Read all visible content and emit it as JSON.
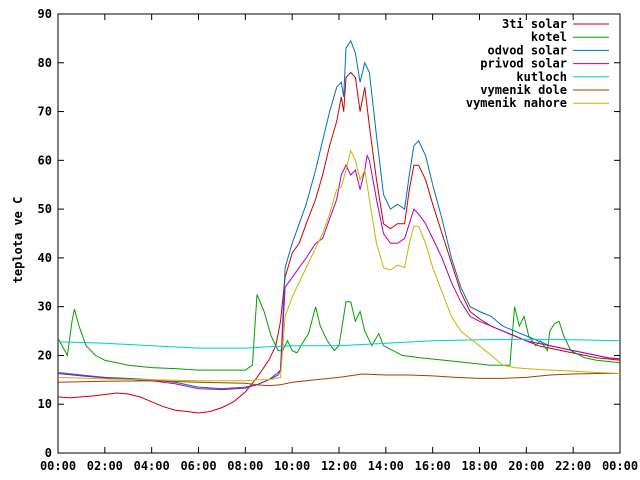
{
  "chart_data": {
    "type": "line",
    "title": "",
    "xlabel": "",
    "ylabel": "teplota ve C",
    "xlim": [
      0,
      24
    ],
    "ylim": [
      0,
      90
    ],
    "xticks": [
      0,
      2,
      4,
      6,
      8,
      10,
      12,
      14,
      16,
      18,
      20,
      22,
      24
    ],
    "xtick_labels": [
      "00:00",
      "02:00",
      "04:00",
      "06:00",
      "08:00",
      "10:00",
      "12:00",
      "14:00",
      "16:00",
      "18:00",
      "20:00",
      "22:00",
      "00:00"
    ],
    "yticks": [
      0,
      10,
      20,
      30,
      40,
      50,
      60,
      70,
      80,
      90
    ],
    "ytick_labels": [
      "0",
      "10",
      "20",
      "30",
      "40",
      "50",
      "60",
      "70",
      "80",
      "90"
    ],
    "grid": false,
    "legend_position": "top-right",
    "series": [
      {
        "name": "3ti solar",
        "color": "#cc0000",
        "points": [
          [
            0,
            11.5
          ],
          [
            0.5,
            11.3
          ],
          [
            1,
            11.5
          ],
          [
            1.5,
            11.7
          ],
          [
            2,
            12
          ],
          [
            2.5,
            12.3
          ],
          [
            3,
            12.1
          ],
          [
            3.5,
            11.5
          ],
          [
            4,
            10.5
          ],
          [
            4.5,
            9.5
          ],
          [
            5,
            8.8
          ],
          [
            5.5,
            8.5
          ],
          [
            6,
            8.2
          ],
          [
            6.5,
            8.5
          ],
          [
            7,
            9.3
          ],
          [
            7.5,
            10.5
          ],
          [
            8,
            12.5
          ],
          [
            8.5,
            15.5
          ],
          [
            9,
            19
          ],
          [
            9.3,
            22
          ],
          [
            9.5,
            27
          ],
          [
            9.7,
            36
          ],
          [
            10,
            41
          ],
          [
            10.3,
            43
          ],
          [
            10.6,
            47
          ],
          [
            11,
            52
          ],
          [
            11.3,
            57
          ],
          [
            11.6,
            63
          ],
          [
            11.9,
            68
          ],
          [
            12.1,
            73
          ],
          [
            12.2,
            70
          ],
          [
            12.3,
            77
          ],
          [
            12.5,
            78
          ],
          [
            12.7,
            77
          ],
          [
            12.9,
            70
          ],
          [
            13.1,
            75
          ],
          [
            13.3,
            67
          ],
          [
            13.6,
            56
          ],
          [
            13.9,
            47
          ],
          [
            14.2,
            46
          ],
          [
            14.5,
            47
          ],
          [
            14.8,
            47
          ],
          [
            15,
            54
          ],
          [
            15.2,
            59
          ],
          [
            15.4,
            59
          ],
          [
            15.7,
            56
          ],
          [
            16,
            51
          ],
          [
            16.4,
            45
          ],
          [
            16.8,
            39
          ],
          [
            17.2,
            33
          ],
          [
            17.6,
            29
          ],
          [
            18,
            27.5
          ],
          [
            18.5,
            26
          ],
          [
            19,
            25
          ],
          [
            19.5,
            24
          ],
          [
            20,
            23
          ],
          [
            20.5,
            22
          ],
          [
            21,
            21.5
          ],
          [
            21.5,
            21
          ],
          [
            22,
            20.5
          ],
          [
            22.5,
            20
          ],
          [
            23,
            19.5
          ],
          [
            23.5,
            19.3
          ],
          [
            24,
            19
          ]
        ]
      },
      {
        "name": "kotel",
        "color": "#00a000",
        "points": [
          [
            0,
            23.5
          ],
          [
            0.4,
            20
          ],
          [
            0.6,
            27
          ],
          [
            0.7,
            29.5
          ],
          [
            0.9,
            26
          ],
          [
            1.2,
            22
          ],
          [
            1.6,
            20
          ],
          [
            2,
            19
          ],
          [
            3,
            18
          ],
          [
            4,
            17.5
          ],
          [
            5,
            17.3
          ],
          [
            6,
            17
          ],
          [
            7,
            17
          ],
          [
            8,
            17
          ],
          [
            8.3,
            18
          ],
          [
            8.5,
            32.5
          ],
          [
            8.8,
            29
          ],
          [
            9.1,
            24
          ],
          [
            9.4,
            21
          ],
          [
            9.6,
            21
          ],
          [
            9.8,
            23
          ],
          [
            10,
            21
          ],
          [
            10.2,
            20.5
          ],
          [
            10.5,
            23
          ],
          [
            10.7,
            24.5
          ],
          [
            11,
            30
          ],
          [
            11.2,
            26
          ],
          [
            11.5,
            23
          ],
          [
            11.8,
            21
          ],
          [
            12,
            22
          ],
          [
            12.3,
            31
          ],
          [
            12.5,
            31
          ],
          [
            12.7,
            27
          ],
          [
            12.9,
            29
          ],
          [
            13.1,
            25
          ],
          [
            13.4,
            22
          ],
          [
            13.7,
            24.5
          ],
          [
            13.9,
            22
          ],
          [
            14.3,
            21
          ],
          [
            14.7,
            20
          ],
          [
            15.5,
            19.5
          ],
          [
            16.5,
            19
          ],
          [
            17.5,
            18.5
          ],
          [
            18.5,
            18
          ],
          [
            19.3,
            18
          ],
          [
            19.5,
            30
          ],
          [
            19.7,
            26
          ],
          [
            19.9,
            28
          ],
          [
            20.1,
            24
          ],
          [
            20.4,
            22
          ],
          [
            20.6,
            23
          ],
          [
            20.9,
            21
          ],
          [
            21,
            25
          ],
          [
            21.2,
            26.5
          ],
          [
            21.4,
            27
          ],
          [
            21.6,
            24
          ],
          [
            21.9,
            21
          ],
          [
            22.5,
            19.5
          ],
          [
            23,
            19
          ],
          [
            24,
            18.5
          ]
        ]
      },
      {
        "name": "odvod solar",
        "color": "#0070c0",
        "points": [
          [
            0,
            16.5
          ],
          [
            1,
            16
          ],
          [
            2,
            15.5
          ],
          [
            3,
            15.3
          ],
          [
            4,
            15
          ],
          [
            5,
            14.5
          ],
          [
            6,
            13.5
          ],
          [
            7,
            13.2
          ],
          [
            8,
            13.5
          ],
          [
            8.5,
            14
          ],
          [
            9,
            15
          ],
          [
            9.4,
            16.5
          ],
          [
            9.5,
            17
          ],
          [
            9.7,
            38
          ],
          [
            10,
            43
          ],
          [
            10.3,
            47
          ],
          [
            10.6,
            51
          ],
          [
            11,
            58
          ],
          [
            11.3,
            64
          ],
          [
            11.6,
            70
          ],
          [
            11.9,
            75
          ],
          [
            12.1,
            76
          ],
          [
            12.2,
            73
          ],
          [
            12.3,
            83
          ],
          [
            12.5,
            84.5
          ],
          [
            12.7,
            82
          ],
          [
            12.9,
            76
          ],
          [
            13.1,
            80
          ],
          [
            13.3,
            78
          ],
          [
            13.6,
            65
          ],
          [
            13.9,
            53
          ],
          [
            14.2,
            50
          ],
          [
            14.5,
            51
          ],
          [
            14.8,
            50
          ],
          [
            15,
            57
          ],
          [
            15.2,
            63
          ],
          [
            15.4,
            64
          ],
          [
            15.7,
            61
          ],
          [
            16,
            55
          ],
          [
            16.4,
            48
          ],
          [
            16.8,
            40
          ],
          [
            17.2,
            34
          ],
          [
            17.6,
            30
          ],
          [
            18,
            29
          ],
          [
            18.5,
            28
          ],
          [
            19,
            26
          ],
          [
            19.5,
            25
          ],
          [
            20,
            24
          ],
          [
            20.5,
            23
          ],
          [
            21,
            22
          ],
          [
            21.5,
            21.5
          ],
          [
            22,
            21
          ],
          [
            22.5,
            20.5
          ],
          [
            23,
            20
          ],
          [
            23.5,
            19.5
          ],
          [
            24,
            19.3
          ]
        ]
      },
      {
        "name": "privod solar",
        "color": "#b000b0",
        "points": [
          [
            0,
            16.3
          ],
          [
            1,
            15.8
          ],
          [
            2,
            15.4
          ],
          [
            3,
            15.1
          ],
          [
            4,
            14.8
          ],
          [
            5,
            14.2
          ],
          [
            6,
            13.2
          ],
          [
            7,
            13
          ],
          [
            8,
            13.3
          ],
          [
            8.5,
            14
          ],
          [
            9,
            15
          ],
          [
            9.4,
            16
          ],
          [
            9.5,
            17
          ],
          [
            9.7,
            34
          ],
          [
            10,
            36
          ],
          [
            10.3,
            38
          ],
          [
            10.6,
            40
          ],
          [
            11,
            43
          ],
          [
            11.3,
            44
          ],
          [
            11.6,
            48
          ],
          [
            11.9,
            52
          ],
          [
            12.1,
            57
          ],
          [
            12.3,
            59
          ],
          [
            12.5,
            57
          ],
          [
            12.7,
            58
          ],
          [
            12.9,
            54
          ],
          [
            13.1,
            58
          ],
          [
            13.2,
            61
          ],
          [
            13.3,
            60
          ],
          [
            13.6,
            52
          ],
          [
            13.9,
            45
          ],
          [
            14.2,
            43
          ],
          [
            14.5,
            43
          ],
          [
            14.8,
            44
          ],
          [
            15,
            47
          ],
          [
            15.2,
            50
          ],
          [
            15.4,
            49
          ],
          [
            15.7,
            47
          ],
          [
            16,
            44
          ],
          [
            16.4,
            40
          ],
          [
            16.8,
            35
          ],
          [
            17.2,
            31
          ],
          [
            17.6,
            28
          ],
          [
            18,
            27
          ],
          [
            18.5,
            26
          ],
          [
            19,
            25
          ],
          [
            19.5,
            24
          ],
          [
            20,
            23
          ],
          [
            20.5,
            22.5
          ],
          [
            21,
            22
          ],
          [
            21.5,
            21.5
          ],
          [
            22,
            21
          ],
          [
            22.5,
            20.5
          ],
          [
            23,
            20
          ],
          [
            23.5,
            19.5
          ],
          [
            24,
            19.3
          ]
        ]
      },
      {
        "name": "kutloch",
        "color": "#00cccc",
        "points": [
          [
            0,
            22.8
          ],
          [
            2,
            22.5
          ],
          [
            4,
            22
          ],
          [
            6,
            21.5
          ],
          [
            8,
            21.5
          ],
          [
            9,
            21.8
          ],
          [
            10,
            22
          ],
          [
            12,
            22
          ],
          [
            14,
            22.5
          ],
          [
            16,
            23
          ],
          [
            18,
            23.2
          ],
          [
            20,
            23.3
          ],
          [
            22,
            23.2
          ],
          [
            24,
            23
          ]
        ]
      },
      {
        "name": "vymenik dole",
        "color": "#a04000",
        "points": [
          [
            0,
            14.5
          ],
          [
            2,
            14.7
          ],
          [
            4,
            14.8
          ],
          [
            6,
            14.5
          ],
          [
            8,
            14.3
          ],
          [
            8.5,
            14
          ],
          [
            9,
            13.8
          ],
          [
            9.5,
            14
          ],
          [
            10,
            14.5
          ],
          [
            11,
            15
          ],
          [
            12,
            15.5
          ],
          [
            13,
            16.2
          ],
          [
            14,
            16
          ],
          [
            15,
            16
          ],
          [
            16,
            15.8
          ],
          [
            17,
            15.5
          ],
          [
            18,
            15.3
          ],
          [
            19,
            15.3
          ],
          [
            20,
            15.5
          ],
          [
            21,
            16
          ],
          [
            22,
            16.2
          ],
          [
            23,
            16.3
          ],
          [
            24,
            16.3
          ]
        ]
      },
      {
        "name": "vymenik nahore",
        "color": "#c8b400",
        "points": [
          [
            0,
            15.5
          ],
          [
            2,
            15.2
          ],
          [
            4,
            15
          ],
          [
            6,
            14.8
          ],
          [
            8,
            14.8
          ],
          [
            8.5,
            15
          ],
          [
            9,
            15
          ],
          [
            9.5,
            15.5
          ],
          [
            9.7,
            28
          ],
          [
            10,
            32
          ],
          [
            10.3,
            35
          ],
          [
            10.6,
            38
          ],
          [
            11,
            42
          ],
          [
            11.3,
            45
          ],
          [
            11.6,
            49
          ],
          [
            11.9,
            54
          ],
          [
            12.1,
            54.5
          ],
          [
            12.3,
            58
          ],
          [
            12.5,
            62
          ],
          [
            12.7,
            60
          ],
          [
            12.9,
            56
          ],
          [
            13.1,
            58
          ],
          [
            13.3,
            52
          ],
          [
            13.6,
            43
          ],
          [
            13.9,
            38
          ],
          [
            14.2,
            37.5
          ],
          [
            14.5,
            38.5
          ],
          [
            14.8,
            38
          ],
          [
            15,
            43
          ],
          [
            15.2,
            46.5
          ],
          [
            15.4,
            46.5
          ],
          [
            15.7,
            43
          ],
          [
            16,
            38
          ],
          [
            16.4,
            33
          ],
          [
            16.8,
            28
          ],
          [
            17.2,
            25
          ],
          [
            17.6,
            23.5
          ],
          [
            18,
            22
          ],
          [
            18.5,
            20
          ],
          [
            19,
            18
          ],
          [
            19.5,
            17.5
          ],
          [
            20,
            17.3
          ],
          [
            21,
            17
          ],
          [
            22,
            16.8
          ],
          [
            23,
            16.5
          ],
          [
            24,
            16.3
          ]
        ]
      }
    ]
  }
}
